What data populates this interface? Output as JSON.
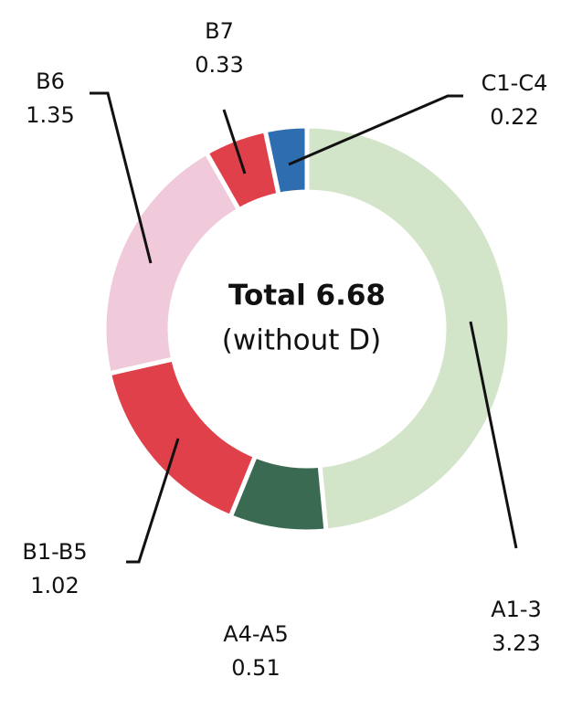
{
  "chart_data": {
    "type": "donut",
    "center_title": "Total 6.68",
    "center_subtitle": "(without D)",
    "categories": [
      "A1-3",
      "A4-A5",
      "B1-B5",
      "B6",
      "B7",
      "C1-C4"
    ],
    "values": [
      3.23,
      0.51,
      1.02,
      1.35,
      0.33,
      0.22
    ],
    "colors": [
      "#d3e5c9",
      "#3a6b52",
      "#e0404a",
      "#f0c9da",
      "#e0404a",
      "#2e6db0"
    ]
  }
}
